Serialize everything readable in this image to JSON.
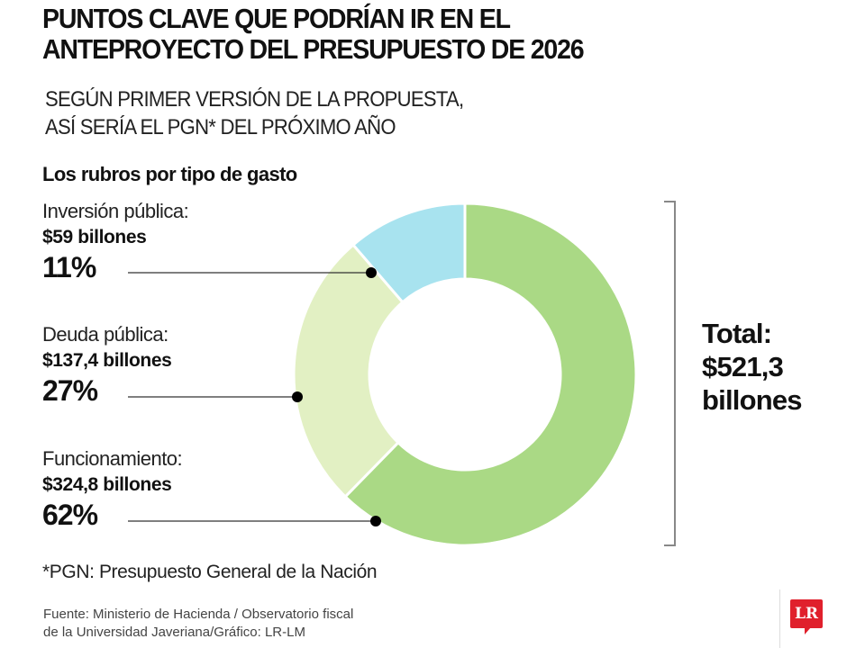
{
  "header": {
    "title_line1": "PUNTOS CLAVE QUE PODRÍAN IR EN EL",
    "title_line2": "ANTEPROYECTO DEL PRESUPUESTO DE 2026",
    "subtitle_line1": "SEGÚN PRIMER VERSIÓN DE LA PROPUESTA,",
    "subtitle_line2": "ASÍ SERÍA EL PGN* DEL PRÓXIMO AÑO"
  },
  "section_title": "Los rubros por tipo de gasto",
  "chart_data": {
    "type": "pie",
    "variant": "donut",
    "title": "Los rubros por tipo de gasto",
    "unit": "billones de pesos",
    "categories": [
      "Funcionamiento",
      "Deuda pública",
      "Inversión pública"
    ],
    "values": [
      324.8,
      137.4,
      59
    ],
    "percentages": [
      62,
      27,
      11
    ],
    "colors": [
      "#aad985",
      "#e2f0c3",
      "#a8e3ef"
    ],
    "start": "top, clockwise",
    "total": 521.3,
    "legend": "left"
  },
  "labels": [
    {
      "name": "Inversión pública:",
      "amount": "$59 billones",
      "pct": "11%"
    },
    {
      "name": "Deuda pública:",
      "amount": "$137,4 billones",
      "pct": "27%"
    },
    {
      "name": "Funcionamiento:",
      "amount": "$324,8 billones",
      "pct": "62%"
    }
  ],
  "total": {
    "line1": "Total:",
    "line2": "$521,3",
    "line3": "billones"
  },
  "footnote": "*PGN: Presupuesto General de la Nación",
  "source": {
    "line1": "Fuente: Ministerio de Hacienda / Observatorio fiscal",
    "line2": "de la Universidad Javeriana/Gráfico: LR-LM"
  },
  "logo": {
    "text": "LR",
    "color": "#e0202c"
  }
}
